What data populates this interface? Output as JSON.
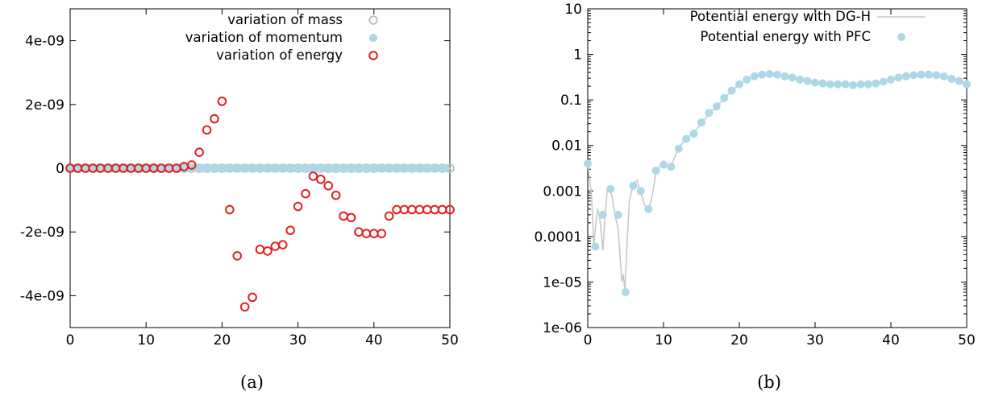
{
  "chart_data": [
    {
      "type": "scatter",
      "caption": "(a)",
      "xlim": [
        0,
        50
      ],
      "ylim": [
        -5e-09,
        5e-09
      ],
      "x_ticks": [
        0,
        10,
        20,
        30,
        40,
        50
      ],
      "y_ticks": [
        -4e-09,
        -2e-09,
        0,
        2e-09,
        4e-09
      ],
      "x_tick_labels": [
        "0",
        "10",
        "20",
        "30",
        "40",
        "50"
      ],
      "y_tick_labels": [
        "-4e-09",
        "-2e-09",
        "0",
        "2e-09",
        "4e-09"
      ],
      "legend_position": "top-right",
      "series": [
        {
          "name": "variation of mass",
          "marker": "open-circle",
          "color": "#c0c0c0",
          "x": [
            0,
            1,
            2,
            3,
            4,
            5,
            6,
            7,
            8,
            9,
            10,
            11,
            12,
            13,
            14,
            15,
            16,
            17,
            18,
            19,
            20,
            21,
            22,
            23,
            24,
            25,
            26,
            27,
            28,
            29,
            30,
            31,
            32,
            33,
            34,
            35,
            36,
            37,
            38,
            39,
            40,
            41,
            42,
            43,
            44,
            45,
            46,
            47,
            48,
            49,
            50
          ],
          "y": [
            0,
            0,
            0,
            0,
            0,
            0,
            0,
            0,
            0,
            0,
            0,
            0,
            0,
            0,
            0,
            0,
            0,
            0,
            0,
            0,
            0,
            0,
            0,
            0,
            0,
            0,
            0,
            0,
            0,
            0,
            0,
            0,
            0,
            0,
            0,
            0,
            0,
            0,
            0,
            0,
            0,
            0,
            0,
            0,
            0,
            0,
            0,
            0,
            0,
            0,
            0
          ]
        },
        {
          "name": "variation of momentum",
          "marker": "filled-circle",
          "color": "#add8e6",
          "x": [
            0,
            0.5,
            1,
            1.5,
            2,
            2.5,
            3,
            3.5,
            4,
            4.5,
            5,
            5.5,
            6,
            6.5,
            7,
            7.5,
            8,
            8.5,
            9,
            9.5,
            10,
            10.5,
            11,
            11.5,
            12,
            12.5,
            13,
            13.5,
            14,
            14.5,
            15,
            15.5,
            16,
            16.5,
            17,
            17.5,
            18,
            18.5,
            19,
            19.5,
            20,
            20.5,
            21,
            21.5,
            22,
            22.5,
            23,
            23.5,
            24,
            24.5,
            25,
            25.5,
            26,
            26.5,
            27,
            27.5,
            28,
            28.5,
            29,
            29.5,
            30,
            30.5,
            31,
            31.5,
            32,
            32.5,
            33,
            33.5,
            34,
            34.5,
            35,
            35.5,
            36,
            36.5,
            37,
            37.5,
            38,
            38.5,
            39,
            39.5,
            40,
            40.5,
            41,
            41.5,
            42,
            42.5,
            43,
            43.5,
            44,
            44.5,
            45,
            45.5,
            46,
            46.5,
            47,
            47.5,
            48,
            48.5,
            49,
            49.5
          ],
          "y": [
            0,
            0,
            0,
            0,
            0,
            0,
            0,
            0,
            0,
            0,
            0,
            0,
            0,
            0,
            0,
            0,
            0,
            0,
            0,
            0,
            0,
            0,
            0,
            0,
            0,
            0,
            0,
            0,
            0,
            0,
            0,
            0,
            0,
            0,
            0,
            0,
            0,
            0,
            0,
            0,
            0,
            0,
            0,
            0,
            0,
            0,
            0,
            0,
            0,
            0,
            0,
            0,
            0,
            0,
            0,
            0,
            0,
            0,
            0,
            0,
            0,
            0,
            0,
            0,
            0,
            0,
            0,
            0,
            0,
            0,
            0,
            0,
            0,
            0,
            0,
            0,
            0,
            0,
            0,
            0,
            0,
            0,
            0,
            0,
            0,
            0,
            0,
            0,
            0,
            0,
            0,
            0,
            0,
            0,
            0,
            0,
            0,
            0,
            0,
            0
          ]
        },
        {
          "name": "variation of energy",
          "marker": "open-circle",
          "color": "#e02020",
          "x": [
            0,
            1,
            2,
            3,
            4,
            5,
            6,
            7,
            8,
            9,
            10,
            11,
            12,
            13,
            14,
            15,
            16,
            17,
            18,
            19,
            20,
            21,
            22,
            23,
            24,
            25,
            26,
            27,
            28,
            29,
            30,
            31,
            32,
            33,
            34,
            35,
            36,
            37,
            38,
            39,
            40,
            41,
            42,
            43,
            44,
            45,
            46,
            47,
            48,
            49,
            50
          ],
          "y": [
            0,
            0,
            0,
            0,
            0,
            0,
            0,
            0,
            0,
            0,
            0,
            0,
            0,
            0,
            0,
            5e-11,
            1e-10,
            5e-10,
            1.2e-09,
            1.55e-09,
            2.1e-09,
            -1.3e-09,
            -2.75e-09,
            -4.35e-09,
            -4.05e-09,
            -2.55e-09,
            -2.6e-09,
            -2.45e-09,
            -2.4e-09,
            -1.95e-09,
            -1.2e-09,
            -8e-10,
            -2.5e-10,
            -3.5e-10,
            -5.5e-10,
            -8.5e-10,
            -1.5e-09,
            -1.55e-09,
            -2e-09,
            -2.05e-09,
            -2.05e-09,
            -2.05e-09,
            -1.5e-09,
            -1.3e-09,
            -1.3e-09,
            -1.3e-09,
            -1.3e-09,
            -1.3e-09,
            -1.3e-09,
            -1.3e-09,
            -1.3e-09
          ]
        }
      ]
    },
    {
      "type": "line",
      "caption": "(b)",
      "xlim": [
        0,
        50
      ],
      "ylim": [
        1e-06,
        10
      ],
      "y_scale": "log",
      "x_ticks": [
        0,
        10,
        20,
        30,
        40,
        50
      ],
      "y_ticks": [
        1e-06,
        1e-05,
        0.0001,
        0.001,
        0.01,
        0.1,
        1,
        10
      ],
      "x_tick_labels": [
        "0",
        "10",
        "20",
        "30",
        "40",
        "50"
      ],
      "y_tick_labels": [
        "1e-06",
        "1e-05",
        "0.0001",
        "0.001",
        "0.01",
        "0.1",
        "1",
        "10"
      ],
      "legend_position": "top-right",
      "series": [
        {
          "name": "Potential energy with DG-H",
          "marker": "line",
          "color": "#c8c8c8",
          "x": [
            0,
            0.5,
            0.8,
            1,
            1.3,
            1.6,
            2,
            2.3,
            2.6,
            3,
            3.3,
            3.6,
            4,
            4.3,
            4.5,
            4.7,
            4.9,
            5.2,
            5.5,
            6,
            6.5,
            7,
            7.5,
            8,
            8.5,
            9,
            9.5,
            10,
            10.5,
            11,
            12,
            13,
            14,
            15,
            16,
            17,
            18,
            19,
            20,
            21,
            22,
            23,
            24,
            25,
            26,
            27,
            28,
            29,
            30,
            31,
            32,
            33,
            34,
            35,
            36,
            37,
            38,
            39,
            40,
            41,
            42,
            43,
            44,
            45,
            46,
            47,
            48,
            49,
            50
          ],
          "y": [
            0.004,
            0.0008,
            6e-05,
            0.00015,
            0.0004,
            0.00025,
            5e-05,
            0.0003,
            0.0012,
            0.0011,
            0.0006,
            0.0003,
            0.00015,
            3e-05,
            1e-05,
            1.5e-05,
            6e-06,
            8e-05,
            0.0006,
            0.0015,
            0.0017,
            0.0009,
            0.0005,
            0.00035,
            0.0008,
            0.0025,
            0.0035,
            0.0038,
            0.0035,
            0.0035,
            0.009,
            0.014,
            0.019,
            0.03,
            0.05,
            0.07,
            0.11,
            0.16,
            0.22,
            0.28,
            0.33,
            0.36,
            0.37,
            0.36,
            0.33,
            0.3,
            0.27,
            0.25,
            0.23,
            0.22,
            0.21,
            0.21,
            0.21,
            0.21,
            0.22,
            0.22,
            0.23,
            0.25,
            0.28,
            0.31,
            0.33,
            0.35,
            0.36,
            0.36,
            0.35,
            0.33,
            0.3,
            0.26,
            0.21
          ]
        },
        {
          "name": "Potential energy with PFC",
          "marker": "filled-circle",
          "color": "#add8e6",
          "x": [
            0,
            1,
            2,
            3,
            4,
            5,
            6,
            7,
            8,
            9,
            10,
            11,
            12,
            13,
            14,
            15,
            16,
            17,
            18,
            19,
            20,
            21,
            22,
            23,
            24,
            25,
            26,
            27,
            28,
            29,
            30,
            31,
            32,
            33,
            34,
            35,
            36,
            37,
            38,
            39,
            40,
            41,
            42,
            43,
            44,
            45,
            46,
            47,
            48,
            49,
            50
          ],
          "y": [
            0.004,
            6e-05,
            0.0003,
            0.0011,
            0.0003,
            6e-06,
            0.0013,
            0.001,
            0.0004,
            0.0028,
            0.0038,
            0.0034,
            0.0085,
            0.014,
            0.018,
            0.032,
            0.052,
            0.072,
            0.11,
            0.16,
            0.22,
            0.28,
            0.33,
            0.36,
            0.37,
            0.36,
            0.33,
            0.31,
            0.28,
            0.26,
            0.24,
            0.23,
            0.22,
            0.22,
            0.22,
            0.21,
            0.22,
            0.22,
            0.23,
            0.25,
            0.28,
            0.31,
            0.33,
            0.35,
            0.36,
            0.36,
            0.35,
            0.33,
            0.29,
            0.26,
            0.22
          ]
        }
      ]
    }
  ]
}
